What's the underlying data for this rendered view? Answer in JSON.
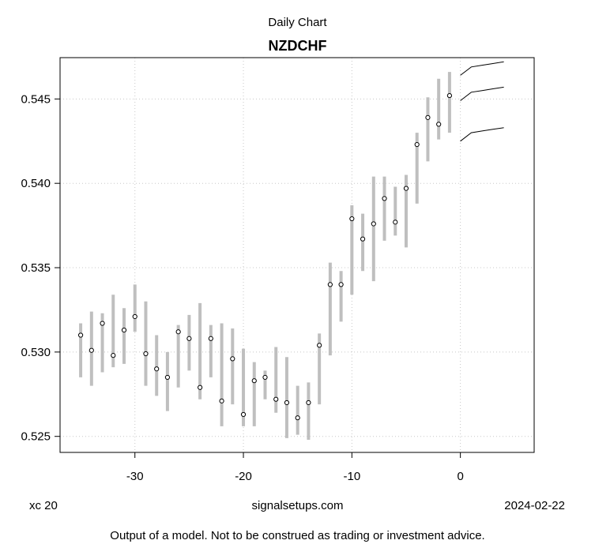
{
  "header": {
    "subtitle": "Daily Chart",
    "title": "NZDCHF"
  },
  "footer": {
    "left": "xc 20",
    "center": "signalsetups.com",
    "right": "2024-02-22",
    "disclaimer": "Output of a model. Not to be construed as trading or investment advice."
  },
  "chart_data": {
    "type": "scatter",
    "title": "NZDCHF",
    "subtitle": "Daily Chart",
    "xlabel": "",
    "ylabel": "",
    "xlim": [
      -36.9,
      6.8
    ],
    "ylim": [
      0.52405,
      0.54745
    ],
    "x_ticks": [
      -30,
      -20,
      -10,
      0
    ],
    "y_ticks": [
      0.525,
      0.53,
      0.535,
      0.54,
      0.545
    ],
    "x_tick_labels": [
      "-30",
      "-20",
      "-10",
      "0"
    ],
    "y_tick_labels": [
      "0.525",
      "0.530",
      "0.535",
      "0.540",
      "0.545"
    ],
    "grid": true,
    "colors": {
      "range": "#bfbfbf",
      "point": "#000000",
      "forecast": "#000000",
      "grid": "#c8c8c8"
    },
    "series": [
      {
        "kind": "high-low-close",
        "points": [
          {
            "x": -35,
            "low": 0.5285,
            "high": 0.5317,
            "close": 0.531
          },
          {
            "x": -34,
            "low": 0.528,
            "high": 0.5324,
            "close": 0.5301
          },
          {
            "x": -33,
            "low": 0.5288,
            "high": 0.5323,
            "close": 0.5317
          },
          {
            "x": -32,
            "low": 0.5291,
            "high": 0.5334,
            "close": 0.5298
          },
          {
            "x": -31,
            "low": 0.5293,
            "high": 0.5326,
            "close": 0.5313
          },
          {
            "x": -30,
            "low": 0.5312,
            "high": 0.534,
            "close": 0.5321
          },
          {
            "x": -29,
            "low": 0.528,
            "high": 0.533,
            "close": 0.5299
          },
          {
            "x": -28,
            "low": 0.5274,
            "high": 0.531,
            "close": 0.529
          },
          {
            "x": -27,
            "low": 0.5265,
            "high": 0.53,
            "close": 0.5285
          },
          {
            "x": -26,
            "low": 0.5279,
            "high": 0.5316,
            "close": 0.5312
          },
          {
            "x": -25,
            "low": 0.5289,
            "high": 0.5322,
            "close": 0.5308
          },
          {
            "x": -24,
            "low": 0.5272,
            "high": 0.5329,
            "close": 0.5279
          },
          {
            "x": -23,
            "low": 0.5285,
            "high": 0.5316,
            "close": 0.5308
          },
          {
            "x": -22,
            "low": 0.5256,
            "high": 0.5317,
            "close": 0.5271
          },
          {
            "x": -21,
            "low": 0.5269,
            "high": 0.5314,
            "close": 0.5296
          },
          {
            "x": -20,
            "low": 0.5256,
            "high": 0.5302,
            "close": 0.5263
          },
          {
            "x": -19,
            "low": 0.5256,
            "high": 0.5294,
            "close": 0.5283
          },
          {
            "x": -18,
            "low": 0.5272,
            "high": 0.5289,
            "close": 0.5285
          },
          {
            "x": -17,
            "low": 0.5264,
            "high": 0.5303,
            "close": 0.5272
          },
          {
            "x": -16,
            "low": 0.5249,
            "high": 0.5297,
            "close": 0.527
          },
          {
            "x": -15,
            "low": 0.5251,
            "high": 0.528,
            "close": 0.5261
          },
          {
            "x": -14,
            "low": 0.5248,
            "high": 0.5282,
            "close": 0.527
          },
          {
            "x": -13,
            "low": 0.5269,
            "high": 0.5311,
            "close": 0.5304
          },
          {
            "x": -12,
            "low": 0.5298,
            "high": 0.5353,
            "close": 0.534
          },
          {
            "x": -11,
            "low": 0.5318,
            "high": 0.5348,
            "close": 0.534
          },
          {
            "x": -10,
            "low": 0.5334,
            "high": 0.5387,
            "close": 0.5379
          },
          {
            "x": -9,
            "low": 0.5348,
            "high": 0.5382,
            "close": 0.5367
          },
          {
            "x": -8,
            "low": 0.5342,
            "high": 0.5404,
            "close": 0.5376
          },
          {
            "x": -7,
            "low": 0.5366,
            "high": 0.5404,
            "close": 0.5391
          },
          {
            "x": -6,
            "low": 0.5369,
            "high": 0.5398,
            "close": 0.5377
          },
          {
            "x": -5,
            "low": 0.5362,
            "high": 0.5405,
            "close": 0.5397
          },
          {
            "x": -4,
            "low": 0.5388,
            "high": 0.543,
            "close": 0.5423
          },
          {
            "x": -3,
            "low": 0.5413,
            "high": 0.5451,
            "close": 0.5439
          },
          {
            "x": -2,
            "low": 0.5426,
            "high": 0.5462,
            "close": 0.5435
          },
          {
            "x": -1,
            "low": 0.543,
            "high": 0.5466,
            "close": 0.5452
          }
        ]
      },
      {
        "kind": "forecast-band",
        "lines": [
          {
            "x": [
              0,
              1,
              2,
              3,
              4
            ],
            "y": [
              0.5464,
              0.5469,
              0.547,
              0.5471,
              0.5472
            ]
          },
          {
            "x": [
              0,
              1,
              2,
              3,
              4
            ],
            "y": [
              0.5449,
              0.5454,
              0.5455,
              0.5456,
              0.5457
            ]
          },
          {
            "x": [
              0,
              1,
              2,
              3,
              4
            ],
            "y": [
              0.5425,
              0.543,
              0.5431,
              0.5432,
              0.5433
            ]
          }
        ]
      }
    ]
  }
}
